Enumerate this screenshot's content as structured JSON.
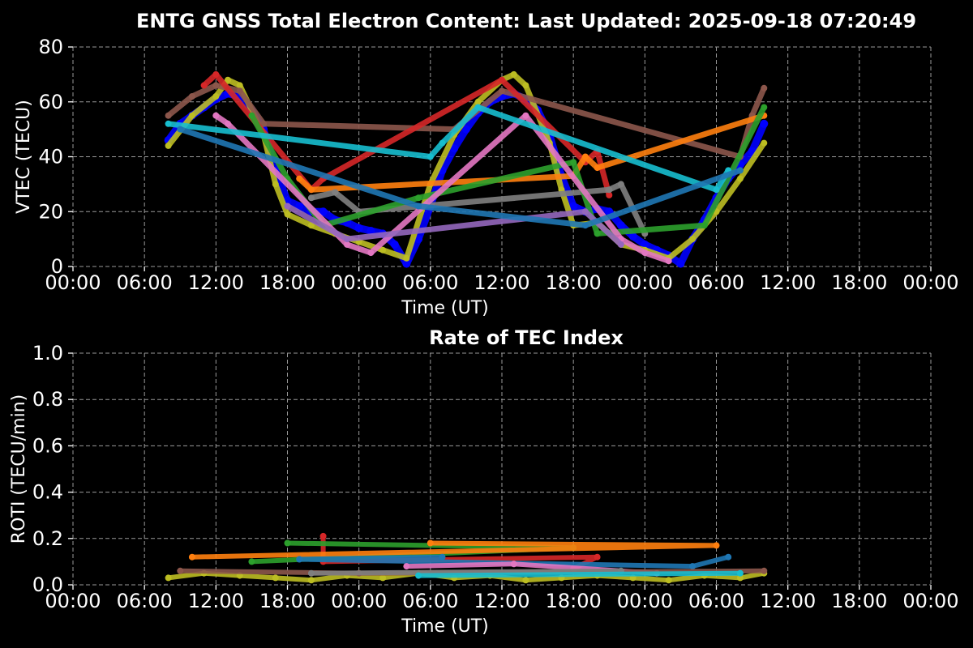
{
  "figure": {
    "title": "ENTG GNSS Total Electron Content: Last Updated: 2025-09-18 07:20:49"
  },
  "chart_data": [
    {
      "type": "scatter",
      "title": "ENTG GNSS Total Electron Content: Last Updated: 2025-09-18 07:20:49",
      "xlabel": "Time (UT)",
      "ylabel": "VTEC (TECU)",
      "xlim": [
        "2025-09-16 00:00",
        "2025-09-19 00:00"
      ],
      "ylim": [
        0,
        80
      ],
      "x_ticks": [
        "00:00",
        "06:00",
        "12:00",
        "18:00",
        "00:00",
        "06:00",
        "12:00",
        "18:00",
        "00:00",
        "06:00",
        "12:00",
        "18:00",
        "00:00"
      ],
      "y_ticks": [
        "0",
        "20",
        "40",
        "60",
        "80"
      ],
      "grid": true,
      "background": "#000000",
      "series": [
        {
          "color": "#0000ff",
          "x": [
            "2025-09-16 08:00",
            "2025-09-16 09:00",
            "2025-09-16 10:00",
            "2025-09-16 11:00",
            "2025-09-16 12:00",
            "2025-09-16 13:00",
            "2025-09-16 14:00",
            "2025-09-16 15:00",
            "2025-09-16 16:00",
            "2025-09-16 17:00",
            "2025-09-16 18:00",
            "2025-09-16 19:00",
            "2025-09-16 20:00",
            "2025-09-16 21:00",
            "2025-09-16 22:00",
            "2025-09-16 23:00",
            "2025-09-17 00:00",
            "2025-09-17 01:00",
            "2025-09-17 02:00",
            "2025-09-17 03:00",
            "2025-09-17 04:00",
            "2025-09-17 05:00",
            "2025-09-17 06:00",
            "2025-09-17 07:00",
            "2025-09-17 08:00",
            "2025-09-17 09:00",
            "2025-09-17 10:00",
            "2025-09-17 11:00",
            "2025-09-17 12:00",
            "2025-09-17 13:00",
            "2025-09-17 14:00",
            "2025-09-17 15:00",
            "2025-09-17 16:00",
            "2025-09-17 17:00",
            "2025-09-17 18:00",
            "2025-09-17 19:00",
            "2025-09-17 20:00",
            "2025-09-17 21:00",
            "2025-09-17 22:00",
            "2025-09-17 23:00",
            "2025-09-18 00:00",
            "2025-09-18 01:00",
            "2025-09-18 02:00",
            "2025-09-18 03:00",
            "2025-09-18 04:00",
            "2025-09-18 05:00",
            "2025-09-18 06:00",
            "2025-09-18 07:00",
            "2025-09-18 08:00",
            "2025-09-18 09:00",
            "2025-09-18 10:00"
          ],
          "y": [
            46,
            52,
            55,
            58,
            61,
            63,
            62,
            57,
            50,
            35,
            24,
            22,
            20,
            20,
            17,
            16,
            14,
            13,
            12,
            8,
            1,
            10,
            22,
            35,
            43,
            50,
            56,
            60,
            62,
            63,
            61,
            57,
            48,
            33,
            22,
            20,
            21,
            20,
            15,
            11,
            8,
            6,
            4,
            1,
            10,
            17,
            25,
            32,
            37,
            42,
            52
          ]
        },
        {
          "color": "#bcbd22",
          "x": [
            "2025-09-16 08:00",
            "2025-09-16 10:00",
            "2025-09-16 12:00",
            "2025-09-16 13:00",
            "2025-09-16 14:00",
            "2025-09-16 16:00",
            "2025-09-16 17:00",
            "2025-09-16 18:00",
            "2025-09-16 20:00",
            "2025-09-16 22:00",
            "2025-09-17 00:00",
            "2025-09-17 02:00",
            "2025-09-17 04:00",
            "2025-09-17 06:00",
            "2025-09-17 08:00",
            "2025-09-17 10:00",
            "2025-09-17 12:00",
            "2025-09-17 13:00",
            "2025-09-17 14:00",
            "2025-09-17 16:00",
            "2025-09-17 17:00",
            "2025-09-17 18:00",
            "2025-09-17 20:00",
            "2025-09-17 22:00",
            "2025-09-18 00:00",
            "2025-09-18 02:00",
            "2025-09-18 04:00",
            "2025-09-18 06:00",
            "2025-09-18 08:00",
            "2025-09-18 10:00"
          ],
          "y": [
            44,
            55,
            62,
            68,
            66,
            48,
            30,
            19,
            15,
            12,
            9,
            6,
            3,
            30,
            48,
            60,
            68,
            70,
            66,
            45,
            28,
            15,
            16,
            8,
            6,
            3,
            10,
            20,
            32,
            45
          ]
        },
        {
          "color": "#8c564b",
          "x": [
            "2025-09-16 08:00",
            "2025-09-16 10:00",
            "2025-09-16 12:00",
            "2025-09-16 14:00",
            "2025-09-16 16:00",
            "2025-09-17 08:00",
            "2025-09-17 12:00",
            "2025-09-18 08:00",
            "2025-09-18 09:00",
            "2025-09-18 10:00"
          ],
          "y": [
            55,
            62,
            66,
            64,
            52,
            50,
            64,
            40,
            55,
            65
          ]
        },
        {
          "color": "#d62728",
          "x": [
            "2025-09-16 11:00",
            "2025-09-16 12:00",
            "2025-09-16 20:00",
            "2025-09-16 21:00",
            "2025-09-17 12:00",
            "2025-09-17 19:00",
            "2025-09-17 20:00",
            "2025-09-17 21:00"
          ],
          "y": [
            66,
            70,
            28,
            32,
            68,
            38,
            42,
            26
          ]
        },
        {
          "color": "#ff7f0e",
          "x": [
            "2025-09-16 19:00",
            "2025-09-16 20:00",
            "2025-09-17 18:00",
            "2025-09-17 19:00",
            "2025-09-17 20:00",
            "2025-09-18 10:00"
          ],
          "y": [
            32,
            28,
            33,
            40,
            36,
            55
          ]
        },
        {
          "color": "#7f7f7f",
          "x": [
            "2025-09-16 20:00",
            "2025-09-16 22:00",
            "2025-09-17 00:00",
            "2025-09-17 21:00",
            "2025-09-17 22:00",
            "2025-09-18 00:00"
          ],
          "y": [
            25,
            27,
            20,
            28,
            30,
            12
          ]
        },
        {
          "color": "#2ca02c",
          "x": [
            "2025-09-16 15:00",
            "2025-09-16 18:00",
            "2025-09-16 21:00",
            "2025-09-17 05:00",
            "2025-09-17 18:00",
            "2025-09-17 20:00",
            "2025-09-18 05:00",
            "2025-09-18 10:00"
          ],
          "y": [
            55,
            32,
            15,
            25,
            38,
            12,
            15,
            58
          ]
        },
        {
          "color": "#e377c2",
          "x": [
            "2025-09-16 12:00",
            "2025-09-16 13:00",
            "2025-09-16 23:00",
            "2025-09-17 01:00",
            "2025-09-17 14:00",
            "2025-09-17 22:00",
            "2025-09-18 00:00",
            "2025-09-18 02:00"
          ],
          "y": [
            55,
            52,
            8,
            5,
            55,
            10,
            5,
            2
          ]
        },
        {
          "color": "#17becf",
          "x": [
            "2025-09-16 08:00",
            "2025-09-17 06:00",
            "2025-09-17 07:00",
            "2025-09-17 10:00",
            "2025-09-18 06:00",
            "2025-09-18 07:00"
          ],
          "y": [
            52,
            40,
            45,
            58,
            28,
            35
          ]
        },
        {
          "color": "#9467bd",
          "x": [
            "2025-09-16 18:00",
            "2025-09-16 23:00",
            "2025-09-17 19:00",
            "2025-09-17 22:00"
          ],
          "y": [
            22,
            10,
            20,
            8
          ]
        },
        {
          "color": "#1f77b4",
          "x": [
            "2025-09-16 09:00",
            "2025-09-17 05:00",
            "2025-09-17 19:00",
            "2025-09-18 08:00"
          ],
          "y": [
            50,
            22,
            15,
            35
          ]
        }
      ]
    },
    {
      "type": "scatter",
      "title": "Rate of TEC Index",
      "xlabel": "Time (UT)",
      "ylabel": "ROTI (TECU/min)",
      "xlim": [
        "2025-09-16 00:00",
        "2025-09-19 00:00"
      ],
      "ylim": [
        0,
        1.0
      ],
      "x_ticks": [
        "00:00",
        "06:00",
        "12:00",
        "18:00",
        "00:00",
        "06:00",
        "12:00",
        "18:00",
        "00:00",
        "06:00",
        "12:00",
        "18:00",
        "00:00"
      ],
      "y_ticks": [
        "0.0",
        "0.2",
        "0.4",
        "0.6",
        "0.8",
        "1.0"
      ],
      "grid": true,
      "background": "#000000",
      "series": [
        {
          "color": "#bcbd22",
          "x": [
            "2025-09-16 08:00",
            "2025-09-16 11:00",
            "2025-09-16 14:00",
            "2025-09-16 17:00",
            "2025-09-16 20:00",
            "2025-09-16 23:00",
            "2025-09-17 02:00",
            "2025-09-17 05:00",
            "2025-09-17 08:00",
            "2025-09-17 11:00",
            "2025-09-17 14:00",
            "2025-09-17 17:00",
            "2025-09-17 20:00",
            "2025-09-17 23:00",
            "2025-09-18 02:00",
            "2025-09-18 05:00",
            "2025-09-18 08:00",
            "2025-09-18 10:00"
          ],
          "y": [
            0.03,
            0.05,
            0.04,
            0.03,
            0.02,
            0.04,
            0.03,
            0.05,
            0.03,
            0.04,
            0.02,
            0.03,
            0.04,
            0.03,
            0.02,
            0.04,
            0.03,
            0.05
          ]
        },
        {
          "color": "#d62728",
          "x": [
            "2025-09-16 21:00",
            "2025-09-16 21:00",
            "2025-09-17 20:00",
            "2025-09-17 18:00"
          ],
          "y": [
            0.21,
            0.1,
            0.12,
            0.07
          ]
        },
        {
          "color": "#2ca02c",
          "x": [
            "2025-09-16 18:00",
            "2025-09-17 18:00",
            "2025-09-16 15:00"
          ],
          "y": [
            0.18,
            0.16,
            0.1
          ]
        },
        {
          "color": "#ff7f0e",
          "x": [
            "2025-09-17 06:00",
            "2025-09-18 06:00",
            "2025-09-16 10:00"
          ],
          "y": [
            0.18,
            0.17,
            0.12
          ]
        },
        {
          "color": "#1f77b4",
          "x": [
            "2025-09-17 07:00",
            "2025-09-16 19:00",
            "2025-09-18 04:00",
            "2025-09-18 07:00"
          ],
          "y": [
            0.12,
            0.11,
            0.08,
            0.12
          ]
        },
        {
          "color": "#e377c2",
          "x": [
            "2025-09-17 04:00",
            "2025-09-17 13:00",
            "2025-09-18 01:00"
          ],
          "y": [
            0.08,
            0.09,
            0.05
          ]
        },
        {
          "color": "#8c564b",
          "x": [
            "2025-09-16 09:00",
            "2025-09-17 00:00",
            "2025-09-18 10:00"
          ],
          "y": [
            0.06,
            0.05,
            0.06
          ]
        },
        {
          "color": "#7f7f7f",
          "x": [
            "2025-09-16 20:00",
            "2025-09-17 22:00"
          ],
          "y": [
            0.05,
            0.06
          ]
        },
        {
          "color": "#17becf",
          "x": [
            "2025-09-17 05:00",
            "2025-09-18 08:00"
          ],
          "y": [
            0.04,
            0.05
          ]
        }
      ]
    }
  ]
}
